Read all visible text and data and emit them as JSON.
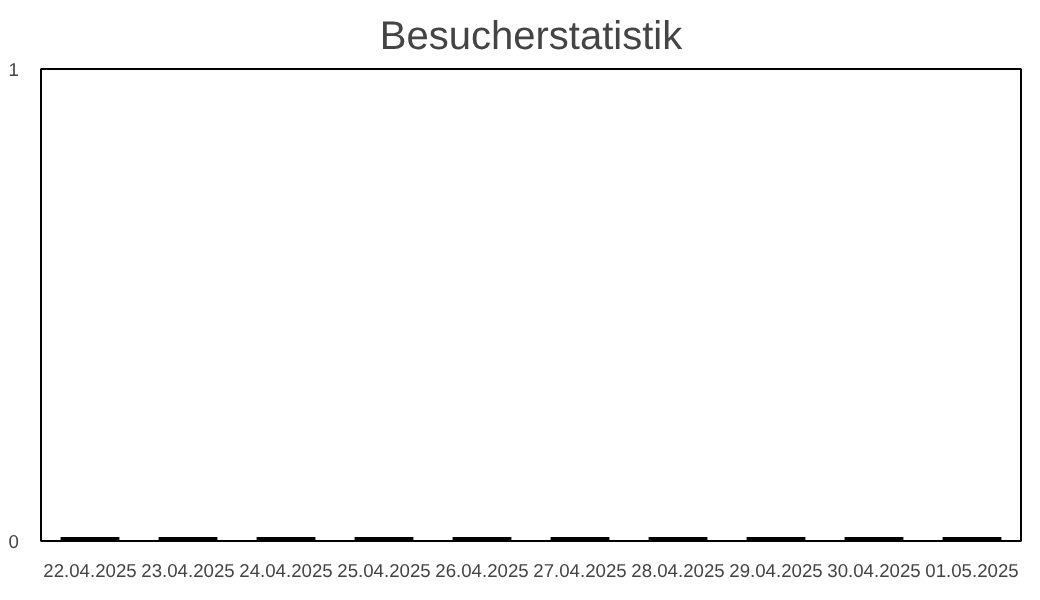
{
  "chart_data": {
    "type": "bar",
    "title": "Besucherstatistik",
    "categories": [
      "22.04.2025",
      "23.04.2025",
      "24.04.2025",
      "25.04.2025",
      "26.04.2025",
      "27.04.2025",
      "28.04.2025",
      "29.04.2025",
      "30.04.2025",
      "01.05.2025"
    ],
    "values": [
      0,
      0,
      0,
      0,
      0,
      0,
      0,
      0,
      0,
      0
    ],
    "color": "#000000",
    "ylim": [
      0,
      1
    ],
    "yticks": [
      0,
      1
    ],
    "grid": false
  }
}
